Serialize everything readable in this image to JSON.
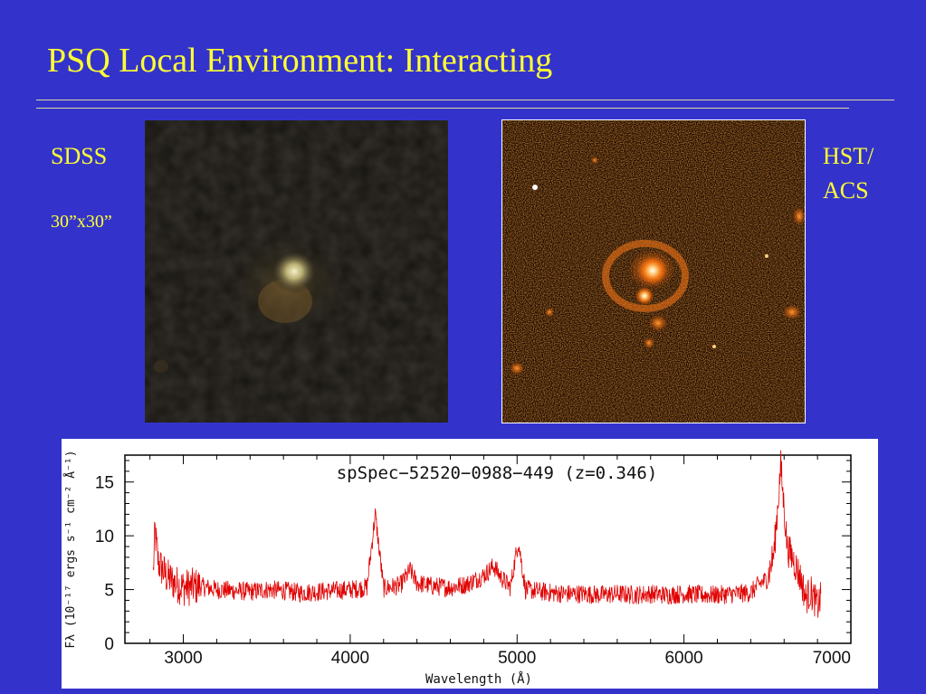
{
  "slide": {
    "title": "PSQ Local Environment: Interacting",
    "left_label": "SDSS",
    "left_sublabel": "30”x30”",
    "right_label_line1": "HST/",
    "right_label_line2": "ACS",
    "colors": {
      "background": "#3333cc",
      "text": "#ffff33"
    }
  },
  "chart_data": {
    "type": "line",
    "title": "spSpec−52520−0988−449 (z=0.346)",
    "xlabel": "Wavelength (Å)",
    "ylabel": "Fλ (10⁻¹⁷ ergs s⁻¹ cm⁻² Å⁻¹)",
    "xlim": [
      2650,
      7000
    ],
    "ylim": [
      0,
      17.5
    ],
    "x_ticks": [
      3000,
      4000,
      5000,
      6000,
      7000
    ],
    "y_ticks": [
      0,
      5,
      10,
      15
    ],
    "series": [
      {
        "color": "#e00000",
        "x": [
          2820,
          2830,
          2850,
          2900,
          2950,
          3000,
          3100,
          3200,
          3300,
          3400,
          3500,
          3600,
          3700,
          3800,
          3900,
          4000,
          4100,
          4150,
          4200,
          4300,
          4360,
          4400,
          4500,
          4600,
          4700,
          4800,
          4860,
          4900,
          4960,
          5007,
          5050,
          5100,
          5200,
          5300,
          5400,
          5500,
          5600,
          5700,
          5800,
          5900,
          6000,
          6100,
          6200,
          6300,
          6400,
          6450,
          6500,
          6540,
          6563,
          6580,
          6600,
          6620,
          6650,
          6700,
          6730,
          6760,
          6800,
          6820
        ],
        "y": [
          6.5,
          10.5,
          7.5,
          6.2,
          5.6,
          5.2,
          5.3,
          5.0,
          4.9,
          4.8,
          5.0,
          4.9,
          4.7,
          4.8,
          4.9,
          5.0,
          5.2,
          12.0,
          5.1,
          5.4,
          6.8,
          5.6,
          5.3,
          5.2,
          5.5,
          6.3,
          7.2,
          6.2,
          5.2,
          9.5,
          5.0,
          4.9,
          4.7,
          4.6,
          4.6,
          4.5,
          4.6,
          4.5,
          4.6,
          4.5,
          4.6,
          4.5,
          4.5,
          4.6,
          4.7,
          5.5,
          6.0,
          8.5,
          13.0,
          16.5,
          12.5,
          8.8,
          8.0,
          6.0,
          4.2,
          4.8,
          3.5,
          4.2
        ]
      }
    ]
  }
}
